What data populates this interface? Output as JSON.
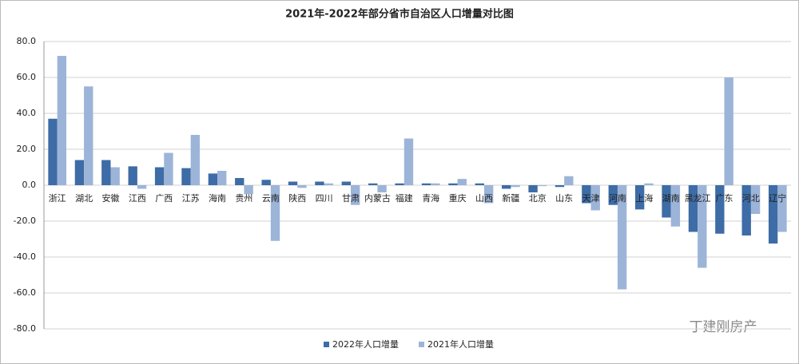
{
  "chart_data": {
    "type": "bar",
    "title": "2021年-2022年部分省市自治区人口增量对比图",
    "categories": [
      "浙江",
      "湖北",
      "安徽",
      "江西",
      "广西",
      "江苏",
      "海南",
      "贵州",
      "云南",
      "陕西",
      "四川",
      "甘肃",
      "内蒙古",
      "福建",
      "青海",
      "重庆",
      "山西",
      "新疆",
      "北京",
      "山东",
      "天津",
      "河南",
      "上海",
      "湖南",
      "黑龙江",
      "广东",
      "河北",
      "辽宁"
    ],
    "series": [
      {
        "name": "2022年人口增量",
        "color": "#3d6ca6",
        "values": [
          37,
          14,
          14,
          10.5,
          10,
          9.5,
          6.5,
          4,
          3,
          2,
          2,
          2,
          1,
          1,
          1,
          1,
          1,
          -2,
          -4,
          -1,
          -10,
          -11,
          -13.5,
          -18,
          -26,
          -27,
          -28,
          -32.5
        ]
      },
      {
        "name": "2021年人口增量",
        "color": "#9cb4d8",
        "values": [
          72,
          55,
          10,
          -2,
          18,
          28,
          8,
          -5,
          -31,
          -1.5,
          1,
          -11,
          -4,
          26,
          1,
          3.5,
          -10,
          -1,
          -0.5,
          5,
          -14,
          -58,
          1,
          -23,
          -46,
          60,
          -16,
          -26
        ]
      }
    ],
    "ylim": [
      -80,
      80
    ],
    "yticks": [
      {
        "value": -80,
        "label": "-80.0"
      },
      {
        "value": -60,
        "label": "-60.0"
      },
      {
        "value": -40,
        "label": "-40.0"
      },
      {
        "value": -20,
        "label": "-20.0"
      },
      {
        "value": 0,
        "label": "0.0"
      },
      {
        "value": 20,
        "label": "20.0"
      },
      {
        "value": 40,
        "label": "40.0"
      },
      {
        "value": 60,
        "label": "60.0"
      },
      {
        "value": 80,
        "label": "80.0"
      }
    ],
    "grid": true,
    "legend": "bottom"
  },
  "watermark": "丁建刚房产"
}
